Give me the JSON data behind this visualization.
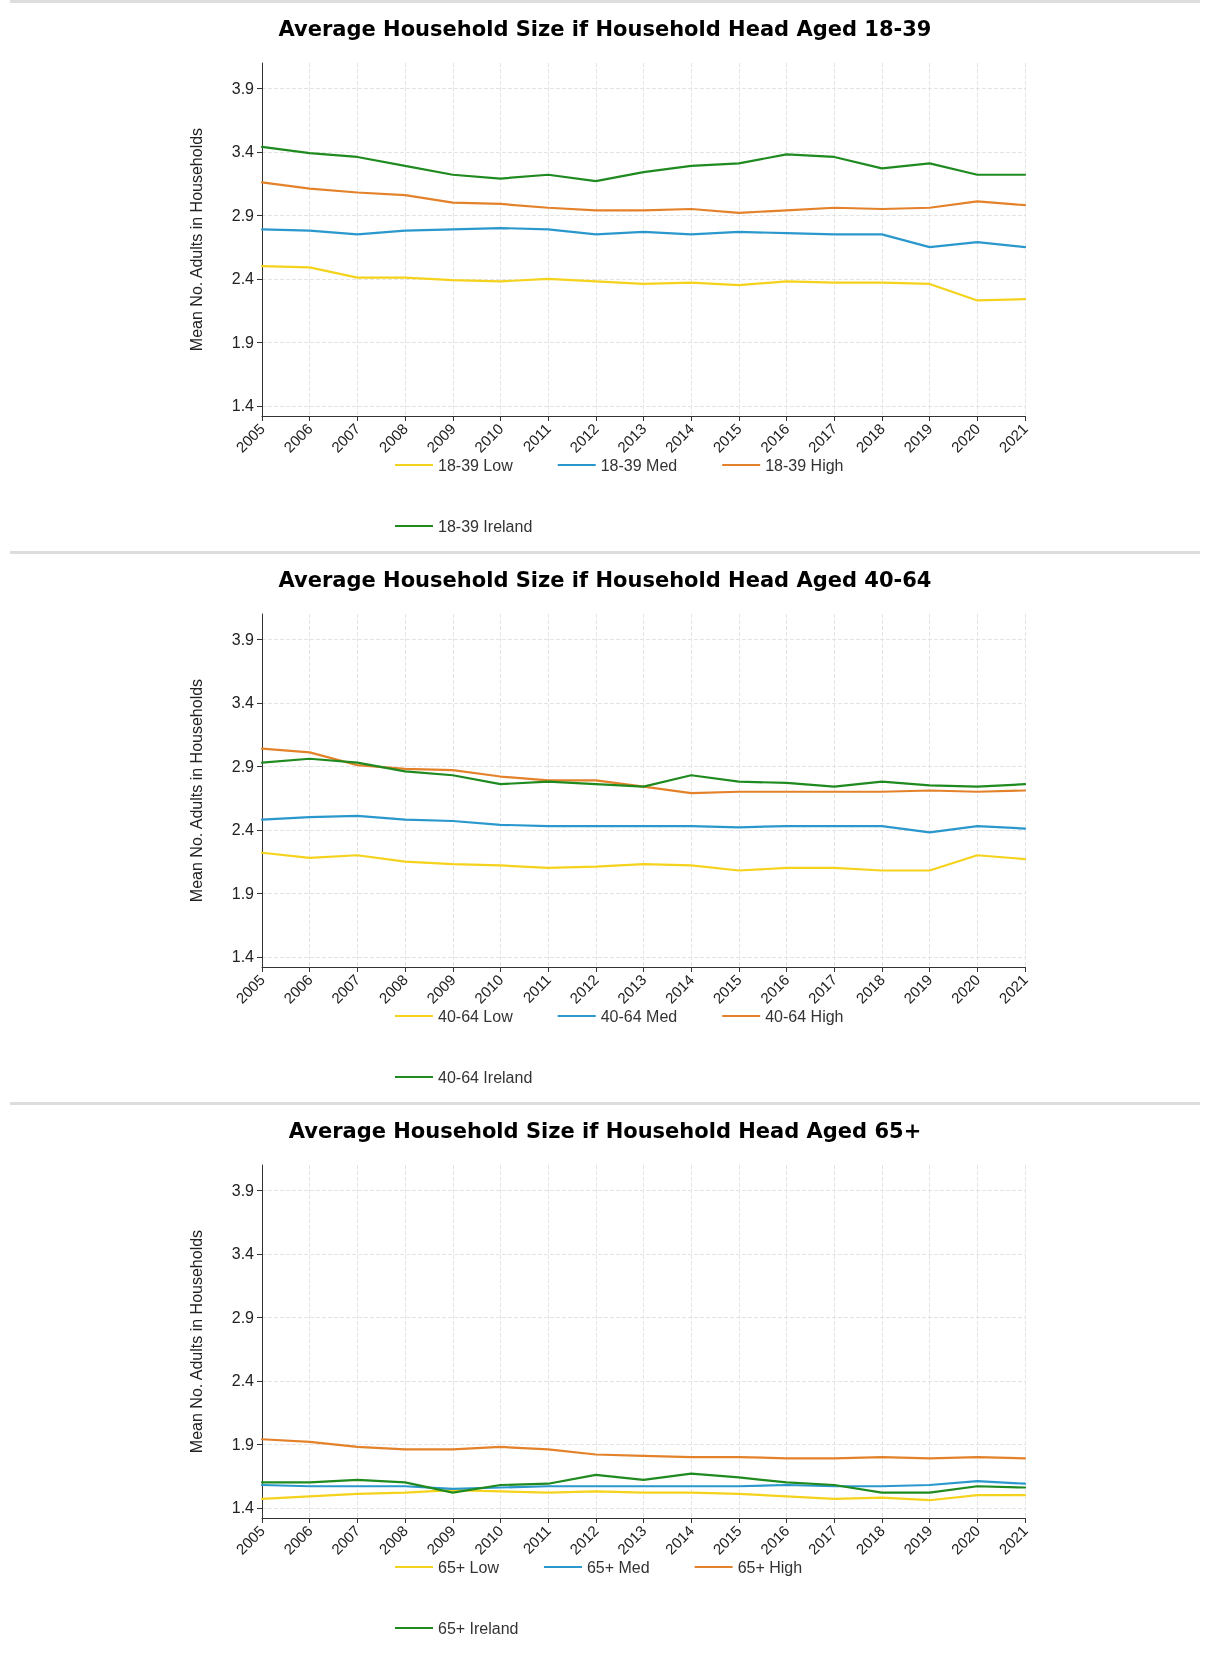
{
  "chart_data": [
    {
      "type": "line",
      "title": "Average Household Size if Household Head Aged 18-39",
      "ylabel": "Mean No. Adults in Households",
      "categories": [
        "2005",
        "2006",
        "2007",
        "2008",
        "2009",
        "2010",
        "2011",
        "2012",
        "2013",
        "2014",
        "2015",
        "2016",
        "2017",
        "2018",
        "2019",
        "2020",
        "2021"
      ],
      "ylim": [
        1.32,
        4.1
      ],
      "yticks": [
        1.4,
        1.9,
        2.4,
        2.9,
        3.4,
        3.9
      ],
      "grid": true,
      "legend": "bottom",
      "marker": "none",
      "line_style": "solid",
      "series": [
        {
          "name": "18-39 Low",
          "color": "#f5d21c",
          "values": [
            2.5,
            2.49,
            2.41,
            2.41,
            2.39,
            2.38,
            2.4,
            2.38,
            2.36,
            2.37,
            2.35,
            2.38,
            2.37,
            2.37,
            2.36,
            2.23,
            2.24
          ]
        },
        {
          "name": "18-39 Med",
          "color": "#2a98cc",
          "values": [
            2.79,
            2.78,
            2.75,
            2.78,
            2.79,
            2.8,
            2.79,
            2.75,
            2.77,
            2.75,
            2.77,
            2.76,
            2.75,
            2.75,
            2.65,
            2.69,
            2.65
          ]
        },
        {
          "name": "18-39 High",
          "color": "#e3822a",
          "values": [
            3.16,
            3.11,
            3.08,
            3.06,
            3.0,
            2.99,
            2.96,
            2.94,
            2.94,
            2.95,
            2.92,
            2.94,
            2.96,
            2.95,
            2.96,
            3.01,
            2.98
          ]
        },
        {
          "name": "18-39 Ireland",
          "color": "#1f8a1f",
          "values": [
            3.44,
            3.39,
            3.36,
            3.29,
            3.22,
            3.19,
            3.22,
            3.17,
            3.24,
            3.29,
            3.31,
            3.38,
            3.36,
            3.27,
            3.31,
            3.22,
            3.22
          ]
        }
      ]
    },
    {
      "type": "line",
      "title": "Average Household Size if Household Head Aged 40-64",
      "ylabel": "Mean No. Adults in Households",
      "categories": [
        "2005",
        "2006",
        "2007",
        "2008",
        "2009",
        "2010",
        "2011",
        "2012",
        "2013",
        "2014",
        "2015",
        "2016",
        "2017",
        "2018",
        "2019",
        "2020",
        "2021"
      ],
      "ylim": [
        1.32,
        4.1
      ],
      "yticks": [
        1.4,
        1.9,
        2.4,
        2.9,
        3.4,
        3.9
      ],
      "grid": true,
      "legend": "bottom",
      "marker": "none",
      "line_style": "solid",
      "series": [
        {
          "name": "40-64 Low",
          "color": "#f5d21c",
          "values": [
            2.22,
            2.18,
            2.2,
            2.15,
            2.13,
            2.12,
            2.1,
            2.11,
            2.13,
            2.12,
            2.08,
            2.1,
            2.1,
            2.08,
            2.08,
            2.2,
            2.17
          ]
        },
        {
          "name": "40-64 Med",
          "color": "#2a98cc",
          "values": [
            2.48,
            2.5,
            2.51,
            2.48,
            2.47,
            2.44,
            2.43,
            2.43,
            2.43,
            2.43,
            2.42,
            2.43,
            2.43,
            2.43,
            2.38,
            2.43,
            2.41
          ]
        },
        {
          "name": "40-64 High",
          "color": "#e3822a",
          "values": [
            3.04,
            3.01,
            2.91,
            2.88,
            2.87,
            2.82,
            2.79,
            2.79,
            2.74,
            2.69,
            2.7,
            2.7,
            2.7,
            2.7,
            2.71,
            2.7,
            2.71
          ]
        },
        {
          "name": "40-64 Ireland",
          "color": "#1f8a1f",
          "values": [
            2.93,
            2.96,
            2.93,
            2.86,
            2.83,
            2.76,
            2.78,
            2.76,
            2.74,
            2.83,
            2.78,
            2.77,
            2.74,
            2.78,
            2.75,
            2.74,
            2.76
          ]
        }
      ]
    },
    {
      "type": "line",
      "title": "Average Household Size if Household Head Aged 65+",
      "ylabel": "Mean No. Adults in Households",
      "categories": [
        "2005",
        "2006",
        "2007",
        "2008",
        "2009",
        "2010",
        "2011",
        "2012",
        "2013",
        "2014",
        "2015",
        "2016",
        "2017",
        "2018",
        "2019",
        "2020",
        "2021"
      ],
      "ylim": [
        1.32,
        4.1
      ],
      "yticks": [
        1.4,
        1.9,
        2.4,
        2.9,
        3.4,
        3.9
      ],
      "grid": true,
      "legend": "bottom",
      "marker": "none",
      "line_style": "solid",
      "series": [
        {
          "name": "65+ Low",
          "color": "#f5d21c",
          "values": [
            1.47,
            1.49,
            1.51,
            1.52,
            1.54,
            1.53,
            1.52,
            1.53,
            1.52,
            1.52,
            1.51,
            1.49,
            1.47,
            1.48,
            1.46,
            1.5,
            1.5
          ]
        },
        {
          "name": "65+ Med",
          "color": "#2a98cc",
          "values": [
            1.58,
            1.57,
            1.57,
            1.57,
            1.55,
            1.56,
            1.57,
            1.57,
            1.57,
            1.57,
            1.57,
            1.58,
            1.57,
            1.57,
            1.58,
            1.61,
            1.59
          ]
        },
        {
          "name": "65+ High",
          "color": "#e3822a",
          "values": [
            1.94,
            1.92,
            1.88,
            1.86,
            1.86,
            1.88,
            1.86,
            1.82,
            1.81,
            1.8,
            1.8,
            1.79,
            1.79,
            1.8,
            1.79,
            1.8,
            1.79
          ]
        },
        {
          "name": "65+ Ireland",
          "color": "#1f8a1f",
          "values": [
            1.6,
            1.6,
            1.62,
            1.6,
            1.52,
            1.58,
            1.59,
            1.66,
            1.62,
            1.67,
            1.64,
            1.6,
            1.58,
            1.52,
            1.52,
            1.57,
            1.56
          ]
        }
      ]
    }
  ]
}
